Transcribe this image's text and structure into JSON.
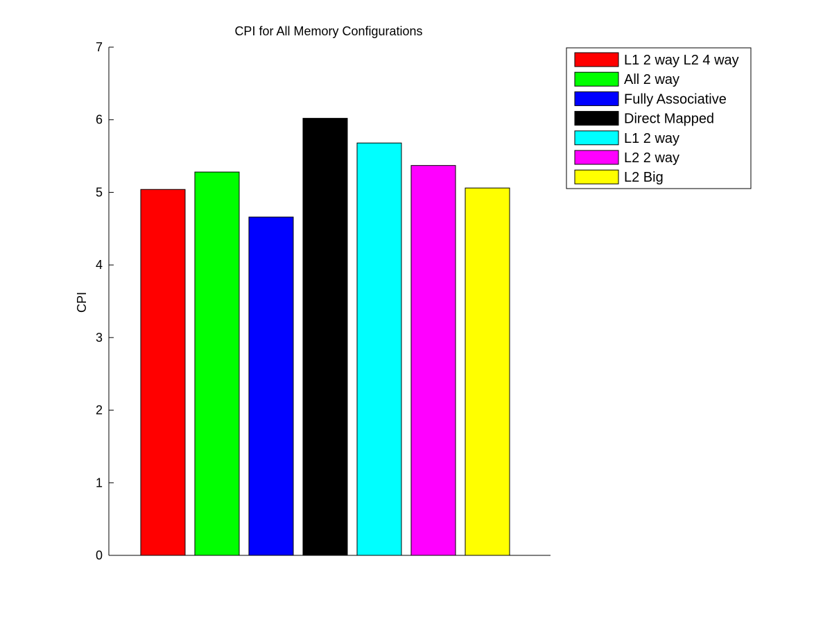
{
  "chart_data": {
    "type": "bar",
    "title": "CPI for All Memory Configurations",
    "xlabel": "",
    "ylabel": "CPI",
    "ylim": [
      0,
      7
    ],
    "yticks": [
      "0",
      "1",
      "2",
      "3",
      "4",
      "5",
      "6",
      "7"
    ],
    "grid": false,
    "legend_position": "outside-top-right",
    "series": [
      {
        "name": "L1 2 way L2 4 way",
        "value": 5.04,
        "color": "#ff0000"
      },
      {
        "name": "All 2 way",
        "value": 5.28,
        "color": "#00ff00"
      },
      {
        "name": "Fully Associative",
        "value": 4.66,
        "color": "#0000ff"
      },
      {
        "name": "Direct Mapped",
        "value": 6.02,
        "color": "#000000"
      },
      {
        "name": "L1 2 way",
        "value": 5.68,
        "color": "#00ffff"
      },
      {
        "name": "L2 2 way",
        "value": 5.37,
        "color": "#ff00ff"
      },
      {
        "name": "L2 Big",
        "value": 5.06,
        "color": "#ffff00"
      }
    ]
  }
}
